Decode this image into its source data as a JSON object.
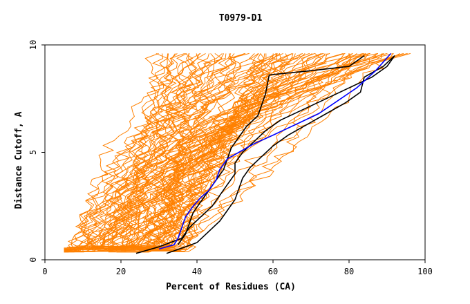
{
  "chart_data": {
    "type": "line",
    "title": "T0979-D1",
    "xlabel": "Percent of Residues (CA)",
    "ylabel": "Distance Cutoff, A",
    "xlim": [
      0,
      100
    ],
    "ylim": [
      0,
      10
    ],
    "x_ticks": [
      0,
      20,
      40,
      60,
      80,
      100
    ],
    "x_tick_labels": [
      "0",
      "20",
      "40",
      "60",
      "80",
      "100"
    ],
    "y_ticks": [
      0,
      5,
      10
    ],
    "y_tick_labels": [
      "0",
      "5",
      "10"
    ],
    "grid": false,
    "legend": "none",
    "colors": {
      "background_curves": "#ff8000",
      "highlight_black": "#000000",
      "highlight_blue": "#0000ff"
    },
    "background_curve_count": 90,
    "series": [
      {
        "color": "#000000",
        "x": [
          24,
          30,
          36,
          38,
          41,
          44,
          46,
          48,
          50,
          50,
          52,
          55,
          58,
          62,
          68,
          74,
          80,
          86,
          90,
          92
        ],
        "y": [
          0.3,
          0.6,
          1.0,
          1.5,
          2.0,
          2.5,
          3.0,
          3.5,
          4.0,
          4.5,
          5.0,
          5.5,
          6.0,
          6.5,
          7.0,
          7.5,
          8.0,
          8.5,
          9.0,
          9.5
        ]
      },
      {
        "color": "#000000",
        "x": [
          32,
          37,
          40,
          43,
          46,
          48,
          50,
          51,
          52,
          54,
          57,
          60,
          64,
          69,
          74,
          79,
          83,
          84,
          89,
          92
        ],
        "y": [
          0.3,
          0.6,
          0.8,
          1.3,
          1.8,
          2.3,
          2.8,
          3.3,
          3.8,
          4.3,
          4.8,
          5.3,
          5.8,
          6.3,
          6.8,
          7.3,
          7.8,
          8.5,
          9.0,
          9.5
        ]
      },
      {
        "color": "#000000",
        "x": [
          35,
          37,
          38,
          39,
          41,
          43,
          45,
          47,
          48,
          49,
          51,
          53,
          56,
          57,
          58,
          59,
          70,
          80,
          84
        ],
        "y": [
          0.7,
          1.2,
          1.7,
          2.2,
          2.7,
          3.2,
          3.7,
          4.2,
          4.7,
          5.2,
          5.7,
          6.2,
          6.7,
          7.2,
          7.7,
          8.6,
          8.8,
          9.0,
          9.5
        ]
      },
      {
        "color": "#0000ff",
        "x": [
          30,
          34,
          35,
          36,
          37,
          39,
          41,
          43,
          45,
          46,
          48,
          51,
          55,
          60,
          66,
          72,
          77,
          82,
          87,
          91
        ],
        "y": [
          0.5,
          0.7,
          1.0,
          1.5,
          2.0,
          2.5,
          2.9,
          3.2,
          3.7,
          4.2,
          4.7,
          5.0,
          5.4,
          5.8,
          6.3,
          6.8,
          7.4,
          8.0,
          8.8,
          9.6
        ]
      }
    ]
  }
}
